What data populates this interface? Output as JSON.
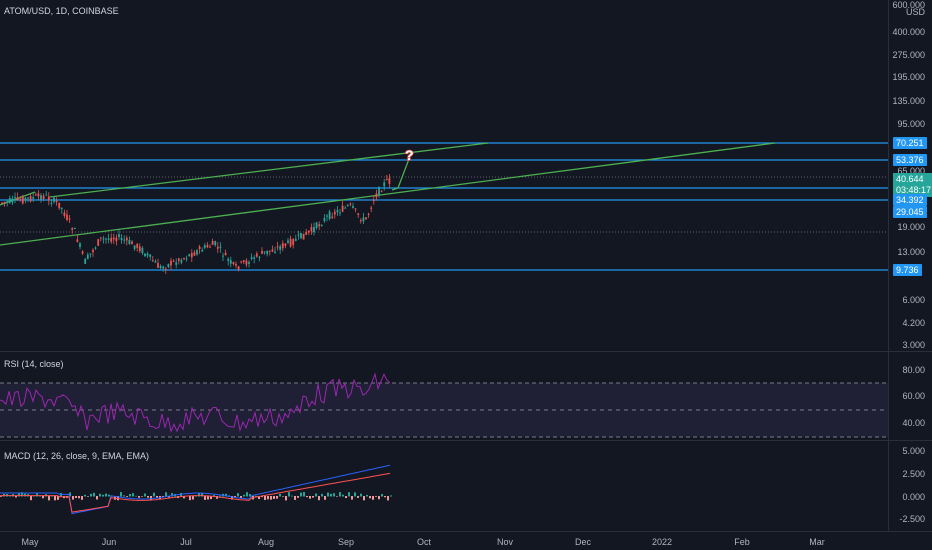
{
  "symbol_title": "ATOM/USD, 1D, COINBASE",
  "price_axis": {
    "top_label": "600.000",
    "currency": "USD",
    "ticks": [
      "400.000",
      "275.000",
      "195.000",
      "135.000",
      "95.000",
      "65.000",
      "19.000",
      "13.000",
      "6.000",
      "4.200",
      "3.000"
    ]
  },
  "levels": [
    "70.251",
    "53.376",
    "34.392",
    "29.045",
    "9.736"
  ],
  "current_price": {
    "value": "40.644",
    "countdown": "03:48:17"
  },
  "rsi": {
    "title": "RSI (14, close)",
    "ticks": [
      "80.00",
      "60.00",
      "40.00"
    ]
  },
  "macd": {
    "title": "MACD (12, 26, close, 9, EMA, EMA)",
    "ticks": [
      "5.000",
      "2.500",
      "0.000",
      "-2.500"
    ]
  },
  "time_axis": [
    "May",
    "Jun",
    "Jul",
    "Aug",
    "Sep",
    "Oct",
    "Nov",
    "Dec",
    "2022",
    "Feb",
    "Mar"
  ],
  "colors": {
    "background": "#131722",
    "level_line": "#2196f3",
    "trend_line": "#4caf50",
    "candle_up": "#26a69a",
    "candle_down": "#ef5350",
    "rsi_line": "#9c27b0",
    "macd_line": "#2962ff",
    "signal_line": "#ff5252"
  }
}
